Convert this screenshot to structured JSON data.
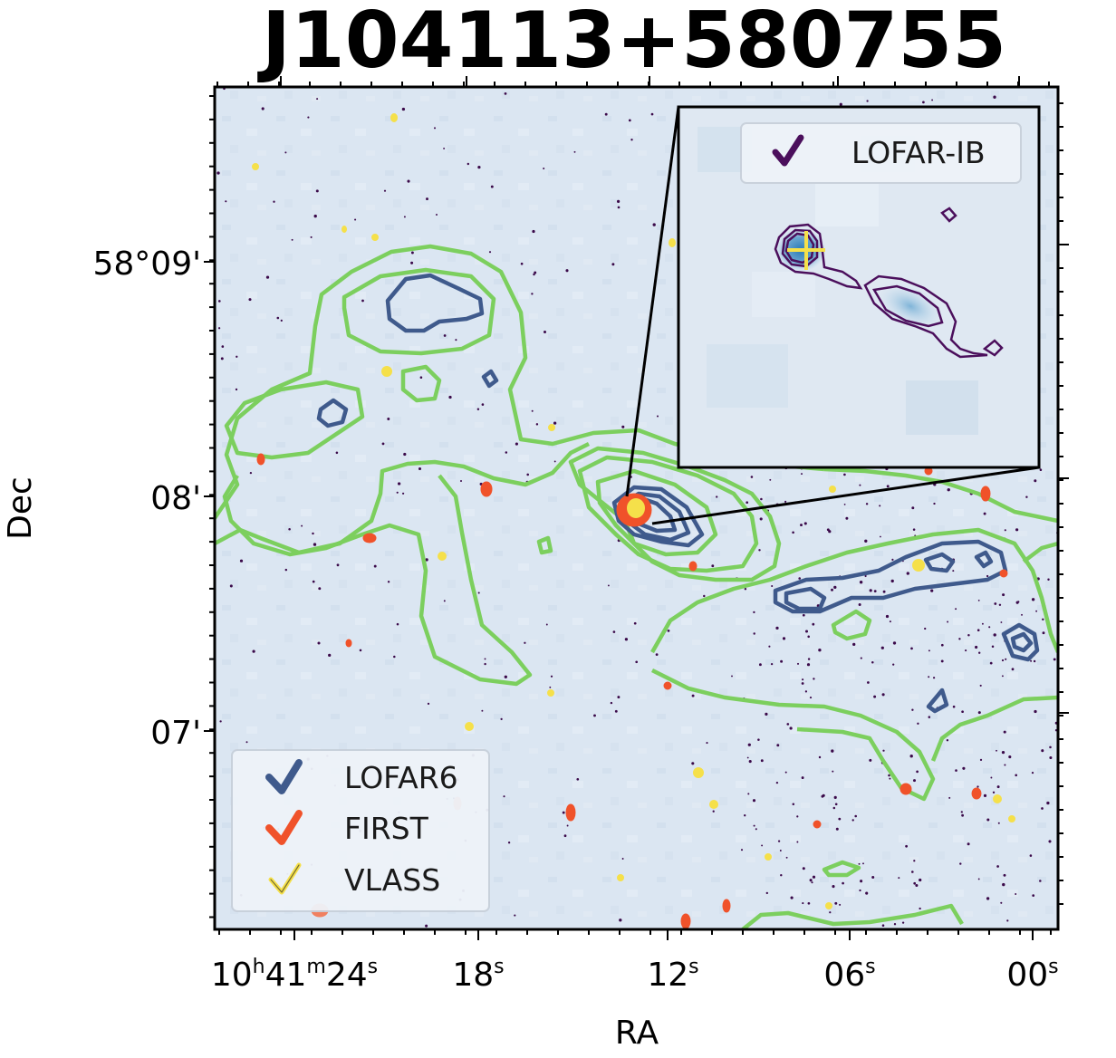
{
  "title": "J104113+580755",
  "chart_data": {
    "type": "contour-image",
    "title": "J104113+580755",
    "xlabel": "RA",
    "ylabel": "Dec",
    "x_ticks": [
      {
        "label": "10h41m24s",
        "parts": [
          "10",
          "h",
          "41",
          "m",
          "24",
          "s"
        ]
      },
      {
        "label": "18s",
        "parts": [
          "18",
          "s"
        ]
      },
      {
        "label": "12s",
        "parts": [
          "12",
          "s"
        ]
      },
      {
        "label": "06s",
        "parts": [
          "06",
          "s"
        ]
      },
      {
        "label": "00s",
        "parts": [
          "00",
          "s"
        ]
      }
    ],
    "y_ticks": [
      "58°09'",
      "08'",
      "07'"
    ],
    "legend_main": [
      {
        "name": "LOFAR6",
        "color": "#3f5a8c"
      },
      {
        "name": "FIRST",
        "color": "#f0522a"
      },
      {
        "name": "VLASS",
        "color": "#f5e04a"
      }
    ],
    "legend_inset": [
      {
        "name": "LOFAR-IB",
        "color": "#4b0f5c"
      }
    ],
    "contour_colors": {
      "green": "#7ccf5e",
      "lofar6": "#3f5a8c",
      "first": "#f0522a",
      "vlass": "#f5e04a",
      "lofar_ib": "#4b0f5c"
    },
    "background_color": "#dbe6f2",
    "marker": "yellow cross at host position in inset"
  }
}
